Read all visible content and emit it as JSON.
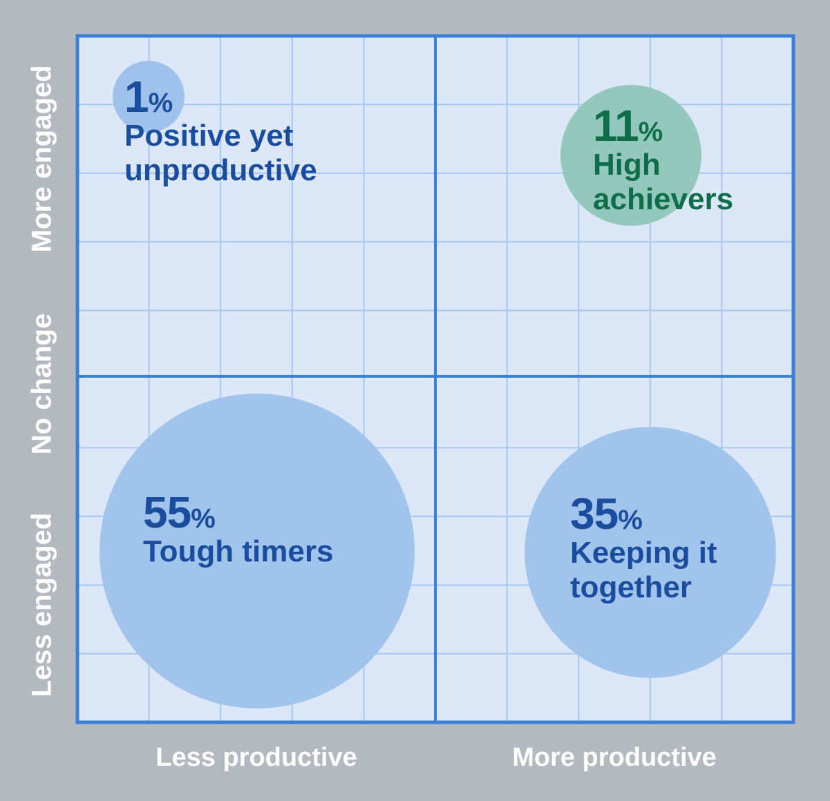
{
  "chart_data": {
    "type": "bubble",
    "x_axis": {
      "labels": [
        "Less productive",
        "More productive"
      ]
    },
    "y_axis": {
      "labels": [
        "More engaged",
        "No change",
        "Less engaged"
      ]
    },
    "quadrants": [
      {
        "x": "Less productive",
        "y": "More engaged",
        "value": 1,
        "value_label": "1",
        "unit": "%",
        "name": "Positive yet unproductive",
        "name_lines": [
          "Positive yet",
          "unproductive"
        ],
        "color": "#1a4d9e",
        "fill": "#9fc2ec"
      },
      {
        "x": "More productive",
        "y": "More engaged",
        "value": 11,
        "value_label": "11",
        "unit": "%",
        "name": "High achievers",
        "name_lines": [
          "High",
          "achievers"
        ],
        "color": "#0f6e4a",
        "fill": "#94c8bc"
      },
      {
        "x": "Less productive",
        "y": "Less engaged",
        "value": 55,
        "value_label": "55",
        "unit": "%",
        "name": "Tough timers",
        "name_lines": [
          "Tough timers"
        ],
        "color": "#1a4d9e",
        "fill": "#a1c4ec"
      },
      {
        "x": "More productive",
        "y": "Less engaged",
        "value": 35,
        "value_label": "35",
        "unit": "%",
        "name": "Keeping it together",
        "name_lines": [
          "Keeping it",
          "together"
        ],
        "color": "#1a4d9e",
        "fill": "#a1c4ec"
      }
    ],
    "grid": true,
    "colors": {
      "background": "#b4b8bf",
      "plot": "#dce8f8",
      "grid": "#a7c6f0",
      "frame": "#3a7fd6",
      "axis_text": "#ffffff"
    }
  }
}
